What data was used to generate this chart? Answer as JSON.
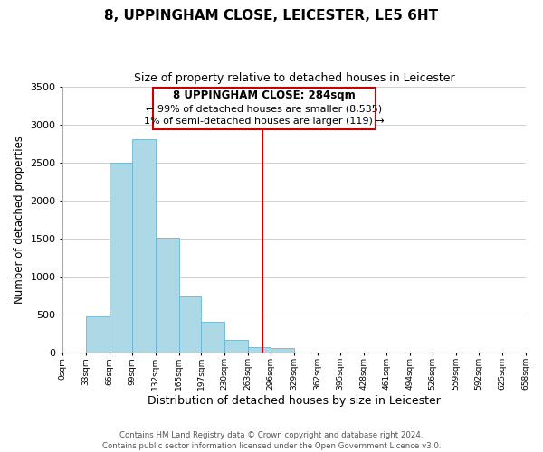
{
  "title": "8, UPPINGHAM CLOSE, LEICESTER, LE5 6HT",
  "subtitle": "Size of property relative to detached houses in Leicester",
  "xlabel": "Distribution of detached houses by size in Leicester",
  "ylabel": "Number of detached properties",
  "bar_left_edges": [
    0,
    33,
    66,
    99,
    132,
    165,
    197,
    230,
    263,
    296,
    329,
    362,
    395,
    428,
    461,
    494,
    526,
    559,
    592,
    625
  ],
  "bar_widths": [
    33,
    33,
    33,
    33,
    33,
    32,
    33,
    33,
    33,
    33,
    33,
    33,
    33,
    33,
    33,
    32,
    33,
    33,
    33,
    33
  ],
  "bar_heights": [
    0,
    470,
    2500,
    2800,
    1510,
    740,
    400,
    155,
    60,
    55,
    0,
    0,
    0,
    0,
    0,
    0,
    0,
    0,
    0,
    0
  ],
  "bar_color": "#add8e6",
  "bar_edge_color": "#6ab4d4",
  "ylim": [
    0,
    3500
  ],
  "xlim": [
    0,
    658
  ],
  "vline_x": 284,
  "vline_color": "#cc0000",
  "annotation_title": "8 UPPINGHAM CLOSE: 284sqm",
  "annotation_line1": "← 99% of detached houses are smaller (8,535)",
  "annotation_line2": "1% of semi-detached houses are larger (119) →",
  "tick_labels": [
    "0sqm",
    "33sqm",
    "66sqm",
    "99sqm",
    "132sqm",
    "165sqm",
    "197sqm",
    "230sqm",
    "263sqm",
    "296sqm",
    "329sqm",
    "362sqm",
    "395sqm",
    "428sqm",
    "461sqm",
    "494sqm",
    "526sqm",
    "559sqm",
    "592sqm",
    "625sqm",
    "658sqm"
  ],
  "tick_positions": [
    0,
    33,
    66,
    99,
    132,
    165,
    197,
    230,
    263,
    296,
    329,
    362,
    395,
    428,
    461,
    494,
    526,
    559,
    592,
    625,
    658
  ],
  "yticks": [
    0,
    500,
    1000,
    1500,
    2000,
    2500,
    3000,
    3500
  ],
  "footer_line1": "Contains HM Land Registry data © Crown copyright and database right 2024.",
  "footer_line2": "Contains public sector information licensed under the Open Government Licence v3.0.",
  "background_color": "#ffffff",
  "grid_color": "#d0d0d0"
}
